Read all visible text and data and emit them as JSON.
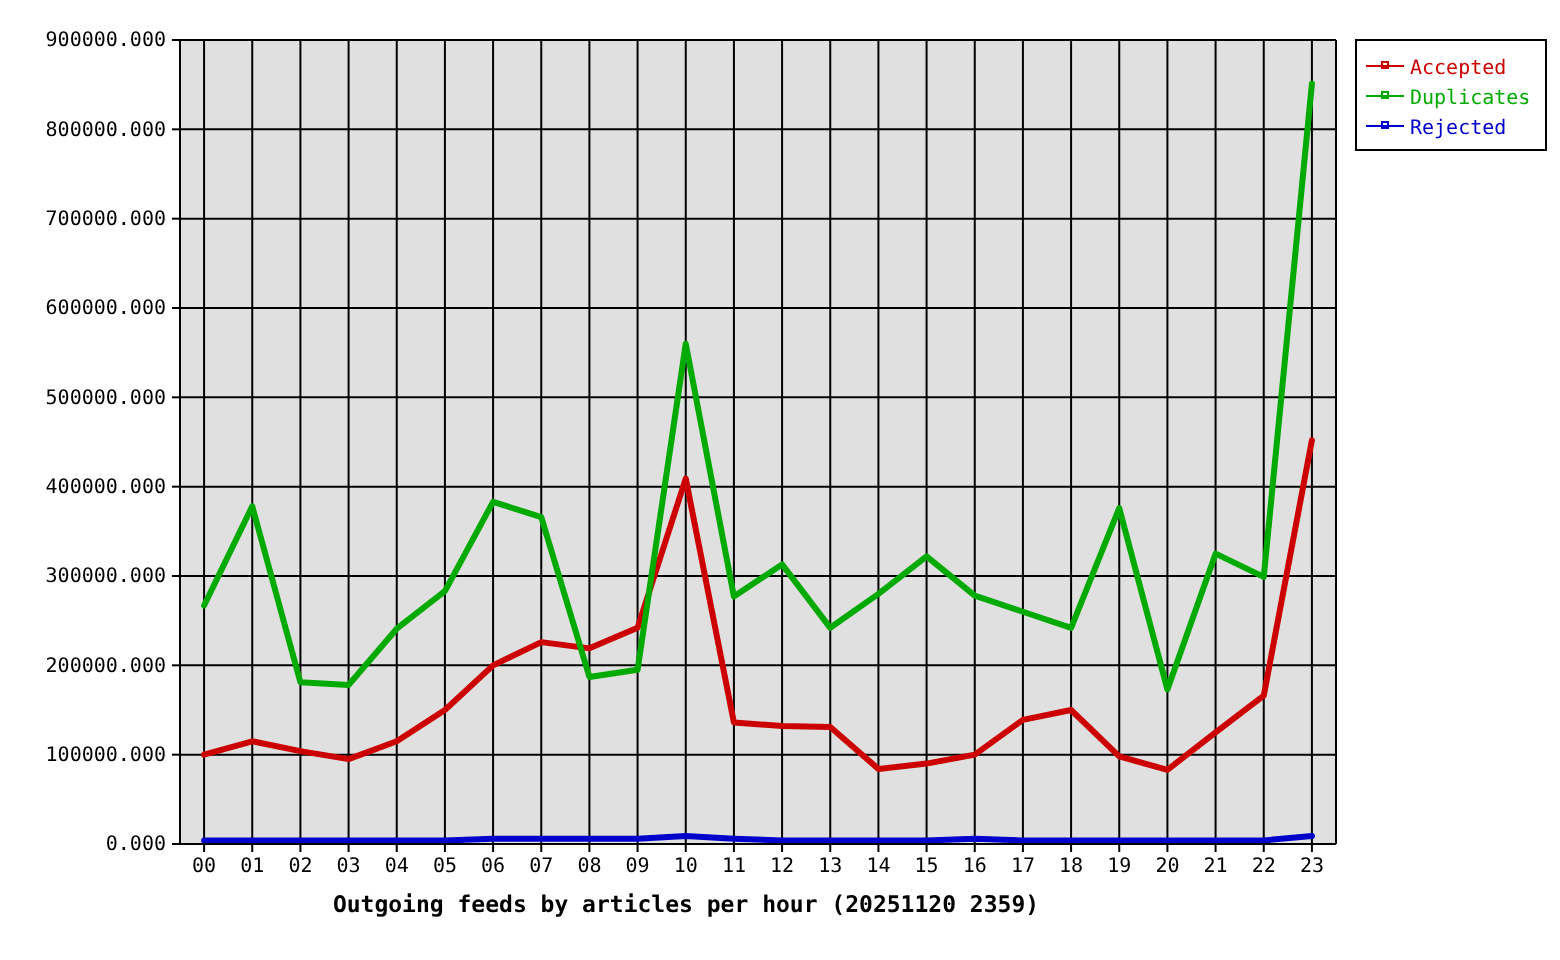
{
  "chart_data": {
    "type": "line",
    "xlabel": "Outgoing feeds by articles per hour (20251120 2359)",
    "categories": [
      "00",
      "01",
      "02",
      "03",
      "04",
      "05",
      "06",
      "07",
      "08",
      "09",
      "10",
      "11",
      "12",
      "13",
      "14",
      "15",
      "16",
      "17",
      "18",
      "19",
      "20",
      "21",
      "22",
      "23"
    ],
    "series": [
      {
        "name": "Accepted",
        "color": "#cc0000",
        "values": [
          100000,
          115000,
          104000,
          95000,
          115000,
          150000,
          200000,
          226000,
          219000,
          242000,
          409000,
          136000,
          132000,
          131000,
          84000,
          90000,
          100000,
          139000,
          150000,
          98000,
          83000,
          125000,
          166000,
          452000
        ]
      },
      {
        "name": "Duplicates",
        "color": "#00aa00",
        "values": [
          267000,
          378000,
          181000,
          178000,
          241000,
          283000,
          383000,
          366000,
          187000,
          195000,
          560000,
          277000,
          313000,
          242000,
          280000,
          322000,
          278000,
          260000,
          242000,
          376000,
          173000,
          325000,
          299000,
          851000
        ]
      },
      {
        "name": "Rejected",
        "color": "#0000cc",
        "values": [
          4000,
          4000,
          4000,
          4000,
          4000,
          4000,
          6000,
          6000,
          6000,
          6000,
          9000,
          6000,
          4000,
          4000,
          4000,
          4000,
          6000,
          4000,
          4000,
          4000,
          4000,
          4000,
          4000,
          9000
        ]
      }
    ],
    "ylim": [
      0,
      900000
    ],
    "yticks": [
      {
        "value": 0,
        "label": "0.000"
      },
      {
        "value": 100000,
        "label": "100000.000"
      },
      {
        "value": 200000,
        "label": "200000.000"
      },
      {
        "value": 300000,
        "label": "300000.000"
      },
      {
        "value": 400000,
        "label": "400000.000"
      },
      {
        "value": 500000,
        "label": "500000.000"
      },
      {
        "value": 600000,
        "label": "600000.000"
      },
      {
        "value": 700000,
        "label": "700000.000"
      },
      {
        "value": 800000,
        "label": "800000.000"
      },
      {
        "value": 900000,
        "label": "900000.000"
      }
    ],
    "grid": true,
    "legend": "top right",
    "line_style": "solid"
  }
}
